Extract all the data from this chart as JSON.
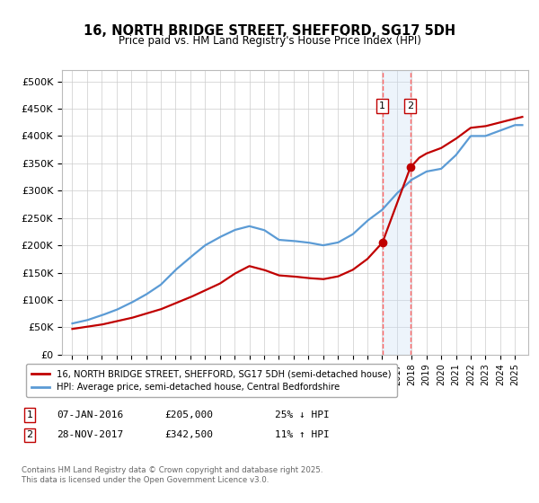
{
  "title": "16, NORTH BRIDGE STREET, SHEFFORD, SG17 5DH",
  "subtitle": "Price paid vs. HM Land Registry's House Price Index (HPI)",
  "ylim": [
    0,
    520000
  ],
  "yticks": [
    0,
    50000,
    100000,
    150000,
    200000,
    250000,
    300000,
    350000,
    400000,
    450000,
    500000
  ],
  "ytick_labels": [
    "£0",
    "£50K",
    "£100K",
    "£150K",
    "£200K",
    "£250K",
    "£300K",
    "£350K",
    "£400K",
    "£450K",
    "£500K"
  ],
  "hpi_color": "#5b9bd5",
  "price_color": "#c00000",
  "shade_color": "#cce0f5",
  "vline_color": "#ff6666",
  "point1_year": 2016.02,
  "point1_price": 205000,
  "point2_year": 2017.91,
  "point2_price": 342500,
  "legend1_text": "16, NORTH BRIDGE STREET, SHEFFORD, SG17 5DH (semi-detached house)",
  "legend2_text": "HPI: Average price, semi-detached house, Central Bedfordshire",
  "footnote": "Contains HM Land Registry data © Crown copyright and database right 2025.\nThis data is licensed under the Open Government Licence v3.0.",
  "box1_label": "07-JAN-2016",
  "box1_price": "£205,000",
  "box1_hpi": "25% ↓ HPI",
  "box2_label": "28-NOV-2017",
  "box2_price": "£342,500",
  "box2_hpi": "11% ↑ HPI",
  "background_color": "#ffffff",
  "grid_color": "#cccccc",
  "xlim_left": 1994.3,
  "xlim_right": 2025.9,
  "hpi_nodes_x": [
    1995,
    1996,
    1997,
    1998,
    1999,
    2000,
    2001,
    2002,
    2003,
    2004,
    2005,
    2006,
    2007,
    2008,
    2009,
    2010,
    2011,
    2012,
    2013,
    2014,
    2015,
    2016,
    2017,
    2018,
    2019,
    2020,
    2021,
    2022,
    2023,
    2024,
    2025
  ],
  "hpi_nodes_y": [
    57000,
    63000,
    72000,
    82000,
    95000,
    110000,
    128000,
    155000,
    178000,
    200000,
    215000,
    228000,
    235000,
    228000,
    210000,
    208000,
    205000,
    200000,
    205000,
    220000,
    245000,
    265000,
    295000,
    320000,
    335000,
    340000,
    365000,
    400000,
    400000,
    410000,
    420000
  ],
  "price_nodes_x": [
    1995,
    1997,
    1999,
    2001,
    2003,
    2005,
    2006,
    2007,
    2008,
    2009,
    2010,
    2011,
    2012,
    2013,
    2014,
    2015,
    2016.02,
    2017.91,
    2018.5,
    2019,
    2020,
    2021,
    2022,
    2023,
    2024,
    2025.5
  ],
  "price_nodes_y": [
    47000,
    55000,
    67000,
    83000,
    105000,
    130000,
    148000,
    162000,
    155000,
    145000,
    143000,
    140000,
    138000,
    143000,
    155000,
    175000,
    205000,
    342500,
    360000,
    368000,
    378000,
    395000,
    415000,
    418000,
    425000,
    435000
  ]
}
